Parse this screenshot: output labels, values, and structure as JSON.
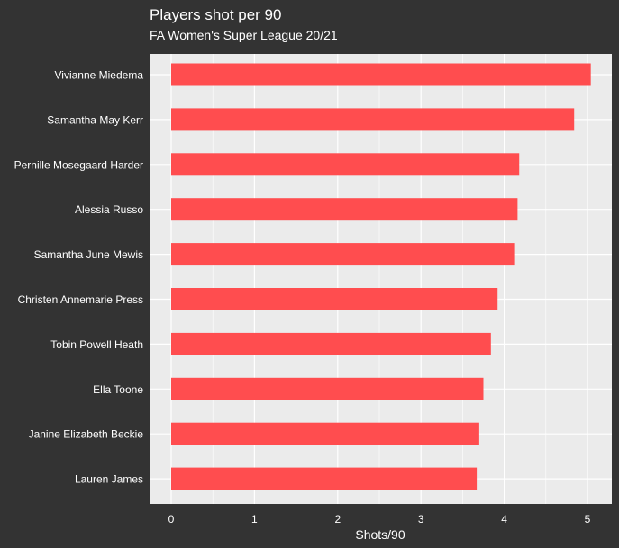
{
  "chart_data": {
    "type": "bar",
    "orientation": "horizontal",
    "title": "Players shot per 90",
    "subtitle": "FA Women's Super League 20/21",
    "xlabel": "Shots/90",
    "ylabel": "",
    "xlim": [
      0,
      5.2
    ],
    "x_ticks": [
      "0",
      "1",
      "2",
      "3",
      "4",
      "5"
    ],
    "grid": true,
    "categories": [
      "Vivianne Miedema",
      "Samantha May Kerr",
      "Pernille Mosegaard Harder",
      "Alessia Russo",
      "Samantha June Mewis",
      "Christen Annemarie Press",
      "Tobin Powell Heath",
      "Ella Toone",
      "Janine Elizabeth Beckie",
      "Lauren James"
    ],
    "values": [
      5.04,
      4.84,
      4.18,
      4.16,
      4.13,
      3.92,
      3.84,
      3.75,
      3.7,
      3.67
    ],
    "colors": {
      "background": "#333333",
      "panel": "#EBEBEB",
      "grid": "#FFFFFF",
      "bar": "#FF4D4F",
      "text": "#FFFFFF"
    }
  }
}
